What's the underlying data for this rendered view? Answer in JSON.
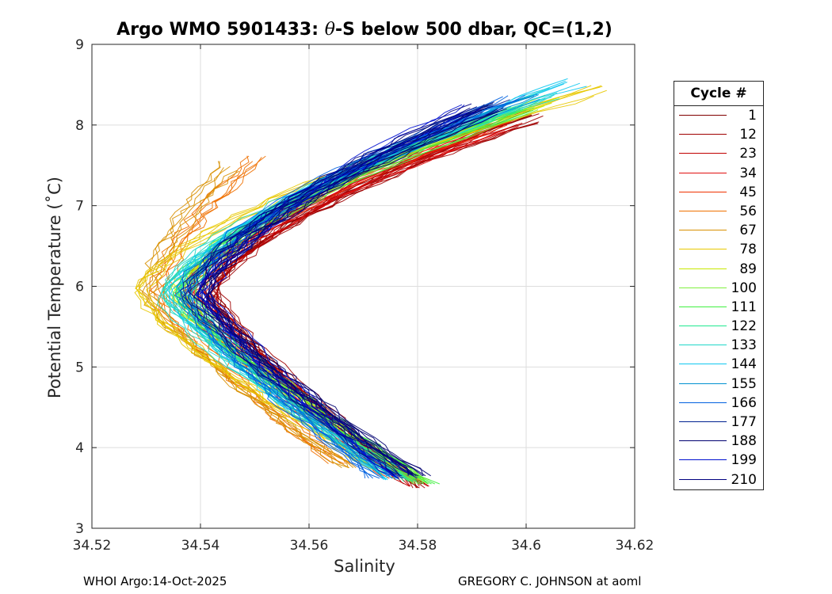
{
  "chart_data": {
    "type": "line",
    "title_prefix": "Argo WMO 5901433: ",
    "title_theta": "θ",
    "title_suffix": "-S below 500 dbar,  QC=(1,2)",
    "xlabel": "Salinity",
    "ylabel": "Potential Temperature (˚C)",
    "xlim": [
      34.52,
      34.62
    ],
    "ylim": [
      3,
      9
    ],
    "x_ticks": [
      34.52,
      34.54,
      34.56,
      34.58,
      34.6,
      34.62
    ],
    "x_tick_labels": [
      "34.52",
      "34.54",
      "34.56",
      "34.58",
      "34.6",
      "34.62"
    ],
    "y_ticks": [
      3,
      4,
      5,
      6,
      7,
      8,
      9
    ],
    "y_tick_labels": [
      "3",
      "4",
      "5",
      "6",
      "7",
      "8",
      "9"
    ],
    "grid": true,
    "legend_placement": "outside-right",
    "legend_title": "Cycle #",
    "series": [
      {
        "name": "1",
        "color": "#800000",
        "s_top": 34.6,
        "t_top": 8.15,
        "s_min": 34.542,
        "s_bottom": 34.58,
        "t_bottom": 3.55
      },
      {
        "name": "12",
        "color": "#a00000",
        "s_top": 34.602,
        "t_top": 8.08,
        "s_min": 34.543,
        "s_bottom": 34.581,
        "t_bottom": 3.5
      },
      {
        "name": "23",
        "color": "#c00000",
        "s_top": 34.598,
        "t_top": 8.0,
        "s_min": 34.541,
        "s_bottom": 34.58,
        "t_bottom": 3.52
      },
      {
        "name": "34",
        "color": "#e01010",
        "s_top": 34.595,
        "t_top": 7.95,
        "s_min": 34.539,
        "s_bottom": 34.579,
        "t_bottom": 3.58
      },
      {
        "name": "45",
        "color": "#f03000",
        "s_top": 34.596,
        "t_top": 8.05,
        "s_min": 34.537,
        "s_bottom": 34.576,
        "t_bottom": 3.62
      },
      {
        "name": "56",
        "color": "#f07000",
        "s_top": 34.551,
        "t_top": 7.58,
        "s_min": 34.533,
        "s_bottom": 34.566,
        "t_bottom": 3.8
      },
      {
        "name": "67",
        "color": "#d89000",
        "s_top": 34.546,
        "t_top": 7.5,
        "s_min": 34.531,
        "s_bottom": 34.568,
        "t_bottom": 3.75
      },
      {
        "name": "78",
        "color": "#e8c800",
        "s_top": 34.614,
        "t_top": 8.42,
        "s_min": 34.529,
        "s_bottom": 34.574,
        "t_bottom": 3.68
      },
      {
        "name": "89",
        "color": "#c8e800",
        "s_top": 34.604,
        "t_top": 8.3,
        "s_min": 34.536,
        "s_bottom": 34.58,
        "t_bottom": 3.6
      },
      {
        "name": "100",
        "color": "#80f040",
        "s_top": 34.601,
        "t_top": 8.25,
        "s_min": 34.538,
        "s_bottom": 34.581,
        "t_bottom": 3.55
      },
      {
        "name": "111",
        "color": "#40f040",
        "s_top": 34.6,
        "t_top": 8.2,
        "s_min": 34.537,
        "s_bottom": 34.582,
        "t_bottom": 3.55
      },
      {
        "name": "122",
        "color": "#20e890",
        "s_top": 34.598,
        "t_top": 8.22,
        "s_min": 34.535,
        "s_bottom": 34.579,
        "t_bottom": 3.58
      },
      {
        "name": "133",
        "color": "#20d8c8",
        "s_top": 34.606,
        "t_top": 8.4,
        "s_min": 34.534,
        "s_bottom": 34.577,
        "t_bottom": 3.62
      },
      {
        "name": "144",
        "color": "#10c8f0",
        "s_top": 34.609,
        "t_top": 8.55,
        "s_min": 34.536,
        "s_bottom": 34.576,
        "t_bottom": 3.6
      },
      {
        "name": "155",
        "color": "#0090d0",
        "s_top": 34.601,
        "t_top": 8.35,
        "s_min": 34.537,
        "s_bottom": 34.574,
        "t_bottom": 3.65
      },
      {
        "name": "166",
        "color": "#0060e0",
        "s_top": 34.598,
        "t_top": 8.3,
        "s_min": 34.538,
        "s_bottom": 34.573,
        "t_bottom": 3.62
      },
      {
        "name": "177",
        "color": "#002090",
        "s_top": 34.595,
        "t_top": 8.25,
        "s_min": 34.539,
        "s_bottom": 34.578,
        "t_bottom": 3.65
      },
      {
        "name": "188",
        "color": "#000070",
        "s_top": 34.594,
        "t_top": 8.2,
        "s_min": 34.54,
        "s_bottom": 34.58,
        "t_bottom": 3.65
      },
      {
        "name": "199",
        "color": "#0010d0",
        "s_top": 34.59,
        "t_top": 8.18,
        "s_min": 34.541,
        "s_bottom": 34.577,
        "t_bottom": 3.62
      },
      {
        "name": "210",
        "color": "#000080",
        "s_top": 34.591,
        "t_top": 8.22,
        "s_min": 34.54,
        "s_bottom": 34.578,
        "t_bottom": 3.66
      }
    ]
  },
  "footer": {
    "left": "WHOI Argo:14-Oct-2025",
    "right": "GREGORY C. JOHNSON at aoml"
  }
}
